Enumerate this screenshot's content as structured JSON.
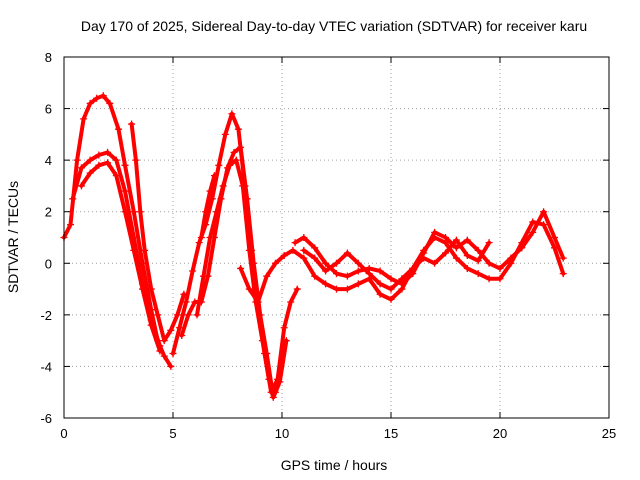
{
  "chart_data": {
    "type": "scatter",
    "title": "Day 170 of 2025, Sidereal Day-to-day VTEC variation (SDTVAR) for receiver karu",
    "xlabel": "GPS time / hours",
    "ylabel": "SDTVAR / TECUs",
    "xlim": [
      0,
      25
    ],
    "ylim": [
      -6,
      8
    ],
    "xticks": [
      0,
      5,
      10,
      15,
      20,
      25
    ],
    "yticks": [
      -6,
      -4,
      -2,
      0,
      2,
      4,
      6,
      8
    ],
    "grid": true,
    "marker": "plus",
    "color": "#ff0000",
    "series": [
      {
        "name": "track-1",
        "x": [
          0,
          0.3,
          0.6,
          0.9,
          1.2,
          1.5,
          1.8,
          2.1,
          2.5,
          2.8,
          3.2,
          3.6,
          4.0,
          4.3,
          4.6,
          4.9
        ],
        "y": [
          1.0,
          1.5,
          4.0,
          5.6,
          6.2,
          6.4,
          6.5,
          6.2,
          5.2,
          3.8,
          2.0,
          0.0,
          -1.8,
          -3.0,
          -3.6,
          -4.0
        ]
      },
      {
        "name": "track-2",
        "x": [
          0.4,
          0.8,
          1.2,
          1.6,
          2.0,
          2.4,
          2.8,
          3.2,
          3.6,
          4.0,
          4.4
        ],
        "y": [
          2.5,
          3.7,
          4.0,
          4.2,
          4.3,
          4.0,
          2.8,
          1.0,
          -0.8,
          -2.2,
          -3.2
        ]
      },
      {
        "name": "track-3",
        "x": [
          0.8,
          1.2,
          1.6,
          2.0,
          2.4,
          2.8,
          3.2,
          3.6,
          4.0,
          4.4
        ],
        "y": [
          3.0,
          3.5,
          3.8,
          3.9,
          3.4,
          2.0,
          0.5,
          -1.0,
          -2.4,
          -3.4
        ]
      },
      {
        "name": "track-4",
        "x": [
          3.1,
          3.3,
          3.5,
          3.7,
          4.0,
          4.3,
          4.6,
          4.9,
          5.2,
          5.5
        ],
        "y": [
          5.4,
          4.0,
          2.0,
          0.5,
          -1.0,
          -2.0,
          -3.0,
          -2.6,
          -2.0,
          -1.2
        ]
      },
      {
        "name": "track-5",
        "x": [
          5.0,
          5.3,
          5.6,
          5.9,
          6.2,
          6.5,
          6.8,
          7.1,
          7.4,
          7.7,
          8.0,
          8.3,
          8.6,
          8.9,
          9.2,
          9.5,
          9.8,
          10.1,
          10.4,
          10.7
        ],
        "y": [
          -3.5,
          -2.5,
          -1.5,
          -0.3,
          0.8,
          1.5,
          2.5,
          3.8,
          5.0,
          5.8,
          5.2,
          3.0,
          0.5,
          -1.5,
          -3.5,
          -5.0,
          -4.5,
          -2.5,
          -1.5,
          -1.0
        ]
      },
      {
        "name": "track-6",
        "x": [
          5.4,
          5.7,
          6.0,
          6.3,
          6.6,
          6.9,
          7.2,
          7.5,
          7.8,
          8.1,
          8.4,
          8.7,
          9.0,
          9.3,
          9.6,
          9.9,
          10.2
        ],
        "y": [
          -2.8,
          -2.0,
          -1.5,
          -1.5,
          -0.5,
          1.0,
          2.5,
          3.7,
          4.3,
          4.5,
          2.5,
          0.0,
          -2.0,
          -3.5,
          -5.2,
          -4.6,
          -3.0
        ]
      },
      {
        "name": "track-7",
        "x": [
          6.1,
          6.4,
          6.7,
          7.0,
          7.3,
          7.6,
          7.9,
          8.2,
          8.5,
          8.8,
          9.1,
          9.4,
          9.7
        ],
        "y": [
          -2.0,
          -0.5,
          1.0,
          2.0,
          3.0,
          3.8,
          4.0,
          3.0,
          0.5,
          -1.5,
          -3.0,
          -4.5,
          -5.0
        ]
      },
      {
        "name": "track-8",
        "x": [
          6.3,
          6.5,
          6.7,
          6.9
        ],
        "y": [
          1.0,
          2.0,
          2.8,
          3.4
        ]
      },
      {
        "name": "track-9",
        "x": [
          8.1,
          8.5,
          8.9,
          9.3,
          9.7,
          10.1,
          10.5,
          11.0,
          11.5,
          12.0,
          12.5,
          13.0,
          13.5,
          14.0,
          14.5,
          15.0,
          15.5,
          16.0,
          16.5,
          17.0,
          17.5,
          18.0,
          18.5,
          19.0,
          19.5,
          20.0,
          20.5,
          21.0,
          21.5,
          22.0,
          22.5,
          22.9
        ],
        "y": [
          -0.2,
          -1.0,
          -1.5,
          -0.5,
          0.0,
          0.3,
          0.5,
          0.2,
          -0.5,
          -0.8,
          -1.0,
          -1.0,
          -0.8,
          -0.6,
          -1.2,
          -1.4,
          -1.0,
          -0.2,
          0.5,
          1.0,
          0.8,
          0.2,
          -0.2,
          -0.4,
          -0.6,
          -0.6,
          0.0,
          0.8,
          1.6,
          1.5,
          0.6,
          -0.4
        ]
      },
      {
        "name": "track-10",
        "x": [
          10.6,
          11.0,
          11.5,
          12.0,
          12.5,
          13.0,
          13.5,
          14.0,
          14.5,
          15.0,
          15.5,
          16.0,
          16.5,
          17.0,
          17.5,
          18.0,
          18.5,
          19.0,
          19.5,
          20.0,
          20.5,
          21.0,
          21.5,
          22.0,
          22.5,
          22.9
        ],
        "y": [
          0.8,
          1.0,
          0.6,
          0.0,
          -0.4,
          -0.5,
          -0.3,
          -0.2,
          -0.3,
          -0.6,
          -0.8,
          -0.4,
          0.4,
          1.2,
          1.0,
          0.6,
          0.9,
          0.5,
          0.0,
          -0.2,
          0.2,
          0.6,
          1.2,
          2.0,
          1.0,
          0.2
        ]
      },
      {
        "name": "track-11",
        "x": [
          11.0,
          11.5,
          12.0,
          12.5,
          13.0,
          13.5,
          14.0,
          14.5,
          15.0,
          15.5,
          16.0,
          16.5,
          17.0,
          17.5,
          18.0,
          18.5,
          19.0,
          19.5
        ],
        "y": [
          0.5,
          0.2,
          -0.3,
          0.0,
          0.4,
          0.0,
          -0.4,
          -0.8,
          -1.0,
          -0.6,
          -0.2,
          0.2,
          0.0,
          0.4,
          0.9,
          0.3,
          0.1,
          0.8
        ]
      }
    ]
  }
}
